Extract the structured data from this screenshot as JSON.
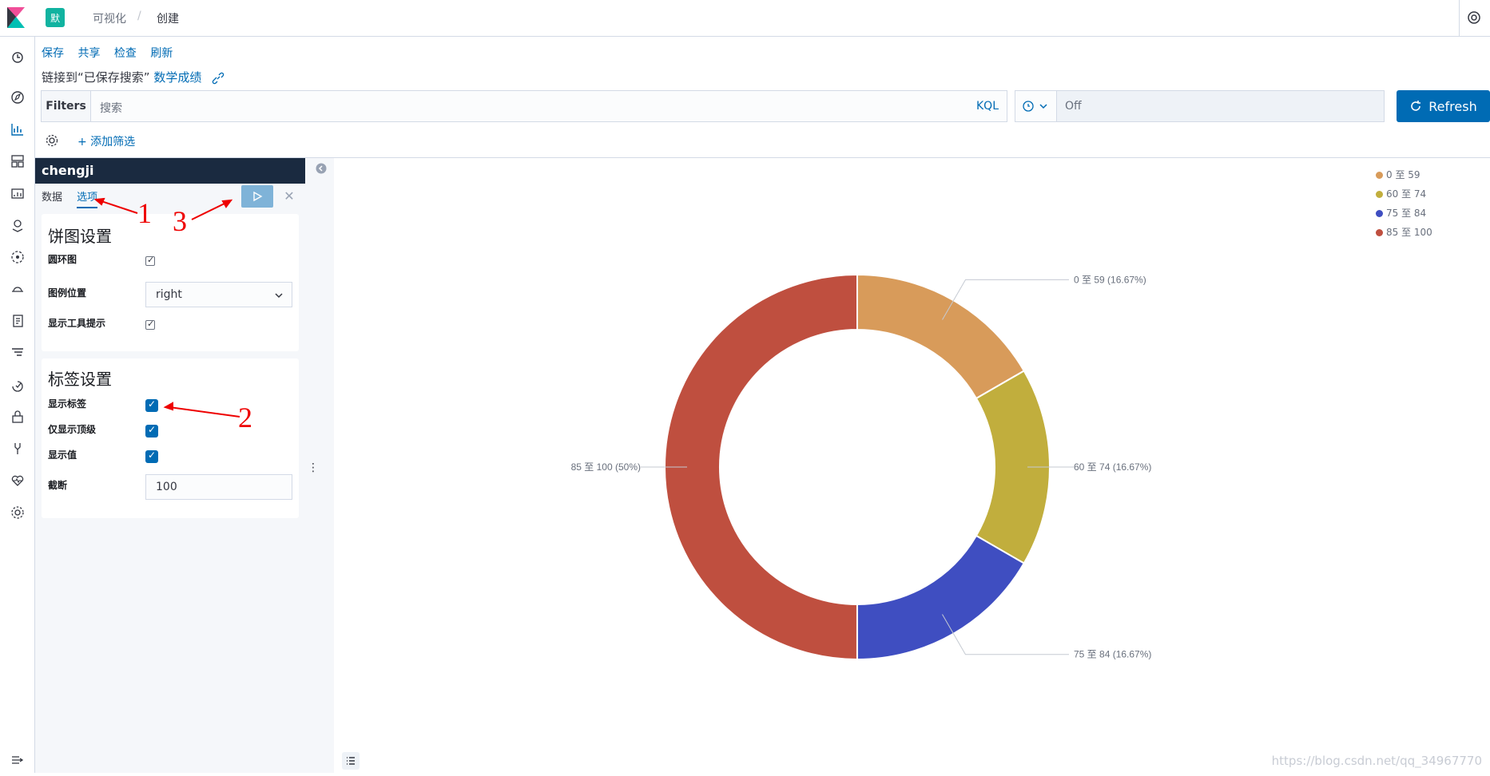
{
  "header": {
    "space_initial": "默",
    "breadcrumbs": [
      "可视化",
      "创建"
    ],
    "breadcrumb_separator": "/"
  },
  "menu": {
    "items": [
      "保存",
      "共享",
      "检查",
      "刷新"
    ],
    "linked_prefix": "链接到“已保存搜索”",
    "linked_search": "数学成绩"
  },
  "query_bar": {
    "filters_label": "Filters",
    "search_placeholder": "搜索",
    "language": "KQL",
    "refresh_interval": "Off",
    "refresh_label": "Refresh",
    "add_filter": "+ 添加筛选"
  },
  "editor": {
    "index_title": "chengji",
    "tabs": [
      "数据",
      "选项"
    ],
    "active_tab": "选项",
    "pie_settings": {
      "title": "饼图设置",
      "donut_label": "圆环图",
      "donut_checked": true,
      "legend_position_label": "图例位置",
      "legend_position_value": "right",
      "show_tooltip_label": "显示工具提示",
      "show_tooltip_checked": true
    },
    "label_settings": {
      "title": "标签设置",
      "show_labels_label": "显示标签",
      "show_labels_checked": true,
      "top_level_only_label": "仅显示顶级",
      "top_level_only_checked": true,
      "show_values_label": "显示值",
      "show_values_checked": true,
      "truncate_label": "截断",
      "truncate_value": "100"
    }
  },
  "annotations": [
    "1",
    "2",
    "3"
  ],
  "chart_data": {
    "type": "pie",
    "donut": true,
    "categories": [
      "0 至 59",
      "60 至 74",
      "75 至 84",
      "85 至 100"
    ],
    "values": [
      16.67,
      16.67,
      16.67,
      50
    ],
    "labels": [
      "0 至 59 (16.67%)",
      "60 至 74 (16.67%)",
      "75 至 84 (16.67%)",
      "85 至 100 (50%)"
    ],
    "colors": [
      "#d89b5a",
      "#c1ae3d",
      "#3f4ec1",
      "#bf4f3f"
    ],
    "legend_position": "top-right"
  },
  "watermark": "https://blog.csdn.net/qq_34967770"
}
